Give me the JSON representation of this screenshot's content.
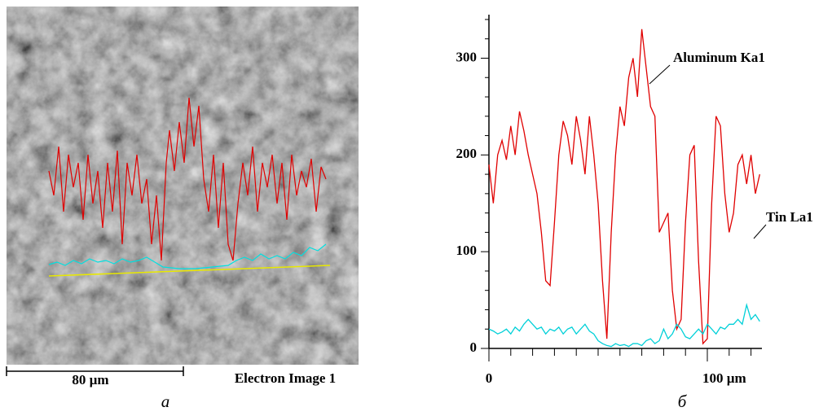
{
  "image_panel": {
    "scale_bar_label": "80 µm",
    "label": "Electron Image 1",
    "caption": "a"
  },
  "chart_data": {
    "type": "line",
    "caption": "б",
    "x": [
      0,
      2,
      4,
      6,
      8,
      10,
      12,
      14,
      16,
      18,
      20,
      22,
      24,
      26,
      28,
      30,
      32,
      34,
      36,
      38,
      40,
      42,
      44,
      46,
      48,
      50,
      52,
      54,
      56,
      58,
      60,
      62,
      64,
      66,
      68,
      70,
      72,
      74,
      76,
      78,
      80,
      82,
      84,
      86,
      88,
      90,
      92,
      94,
      96,
      98,
      100,
      102,
      104,
      106,
      108,
      110,
      112,
      114,
      116,
      118,
      120,
      122,
      124
    ],
    "series": [
      {
        "name": "Aluminum Ka1",
        "color": "#e00000",
        "values": [
          190,
          150,
          200,
          215,
          195,
          230,
          200,
          245,
          225,
          200,
          180,
          160,
          120,
          70,
          65,
          130,
          200,
          235,
          220,
          190,
          240,
          215,
          180,
          240,
          200,
          150,
          70,
          10,
          120,
          200,
          250,
          230,
          280,
          300,
          260,
          330,
          290,
          250,
          240,
          120,
          130,
          140,
          60,
          20,
          30,
          130,
          200,
          210,
          90,
          5,
          10,
          150,
          240,
          230,
          160,
          120,
          140,
          190,
          200,
          170,
          200,
          160,
          180
        ]
      },
      {
        "name": "Tin La1",
        "color": "#00d0d8",
        "values": [
          20,
          18,
          15,
          17,
          20,
          15,
          22,
          18,
          25,
          30,
          25,
          20,
          22,
          15,
          20,
          18,
          22,
          15,
          20,
          22,
          15,
          20,
          25,
          18,
          15,
          8,
          5,
          3,
          2,
          5,
          3,
          4,
          2,
          5,
          5,
          3,
          8,
          10,
          5,
          8,
          20,
          10,
          15,
          25,
          20,
          12,
          10,
          15,
          20,
          15,
          25,
          20,
          15,
          22,
          20,
          25,
          25,
          30,
          25,
          45,
          30,
          35,
          28
        ]
      }
    ],
    "xlim": [
      0,
      125
    ],
    "xticks": [
      0,
      {
        "value": 100,
        "label": "100 µm"
      }
    ],
    "xminorticks": [
      10,
      20,
      30,
      40,
      50,
      60,
      70,
      80,
      90,
      110,
      120
    ],
    "ylim": [
      0,
      345
    ],
    "yticks": [
      0,
      100,
      200,
      300
    ],
    "yminorticks": [
      20,
      40,
      60,
      80,
      120,
      140,
      160,
      180,
      220,
      240,
      260,
      280,
      320,
      340
    ]
  }
}
